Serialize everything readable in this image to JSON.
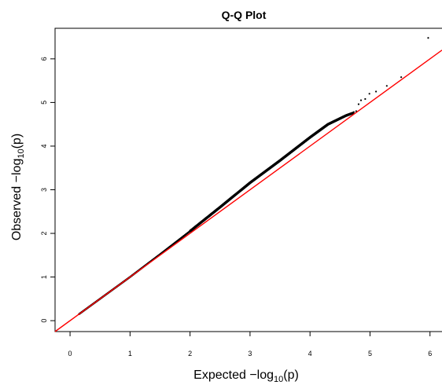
{
  "chart_data": {
    "type": "scatter",
    "title": "Q-Q Plot",
    "xlabel": {
      "prefix": "Expected  −log",
      "subscript": "10",
      "suffix": "(p)"
    },
    "ylabel": {
      "prefix": "Observed  −log",
      "subscript": "10",
      "suffix": "(p)"
    },
    "xlim": [
      -0.25,
      6.2
    ],
    "ylim": [
      -0.25,
      6.7
    ],
    "x_ticks": [
      "0",
      "1",
      "2",
      "3",
      "4",
      "5",
      "6"
    ],
    "y_ticks": [
      "0",
      "1",
      "2",
      "3",
      "4",
      "5",
      "6"
    ],
    "reference_line": {
      "slope": 1,
      "intercept": 0,
      "color": "#ff0000"
    },
    "point_color": "#000000",
    "sparse_points": [
      {
        "x": 4.73,
        "y": 4.78
      },
      {
        "x": 4.77,
        "y": 4.8
      },
      {
        "x": 4.81,
        "y": 4.96
      },
      {
        "x": 4.85,
        "y": 5.05
      },
      {
        "x": 4.92,
        "y": 5.08
      },
      {
        "x": 4.99,
        "y": 5.2
      },
      {
        "x": 5.1,
        "y": 5.25
      },
      {
        "x": 5.28,
        "y": 5.38
      },
      {
        "x": 5.52,
        "y": 5.58
      },
      {
        "x": 5.97,
        "y": 6.48
      }
    ],
    "dense_trend": [
      {
        "x": 0.0,
        "y": 0.0
      },
      {
        "x": 1.0,
        "y": 1.0
      },
      {
        "x": 1.5,
        "y": 1.52
      },
      {
        "x": 2.0,
        "y": 2.05
      },
      {
        "x": 2.5,
        "y": 2.6
      },
      {
        "x": 3.0,
        "y": 3.16
      },
      {
        "x": 3.5,
        "y": 3.67
      },
      {
        "x": 4.0,
        "y": 4.2
      },
      {
        "x": 4.3,
        "y": 4.5
      },
      {
        "x": 4.6,
        "y": 4.7
      },
      {
        "x": 4.72,
        "y": 4.76
      }
    ]
  }
}
